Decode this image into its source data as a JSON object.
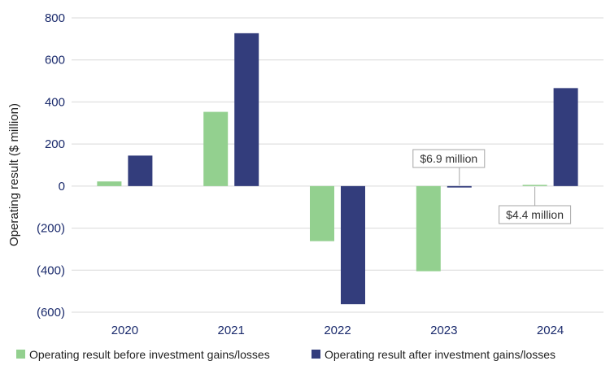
{
  "chart_data": {
    "type": "bar",
    "ylabel": "Operating result ($ million)",
    "categories": [
      "2020",
      "2021",
      "2022",
      "2023",
      "2024"
    ],
    "ylim": [
      -600,
      800
    ],
    "yticks": [
      800,
      600,
      400,
      200,
      0,
      -200,
      -400,
      -600
    ],
    "ytick_labels": [
      "800",
      "600",
      "400",
      "200",
      "0",
      "(200)",
      "(400)",
      "(600)"
    ],
    "grid": true,
    "legend_position": "bottom",
    "series": [
      {
        "name": "Operating result before investment gains/losses",
        "color": "#93d08f",
        "values": [
          22,
          353,
          -262,
          -405,
          4.4
        ]
      },
      {
        "name": "Operating result after investment gains/losses",
        "color": "#333d7c",
        "values": [
          145,
          727,
          -562,
          -6.9,
          466
        ]
      }
    ],
    "annotations": [
      {
        "text": "$6.9 million",
        "category": "2023",
        "series": 1
      },
      {
        "text": "$4.4 million",
        "category": "2024",
        "series": 0
      }
    ],
    "axis_color": "#1a2a6c",
    "grid_color": "#d9d9d9"
  }
}
